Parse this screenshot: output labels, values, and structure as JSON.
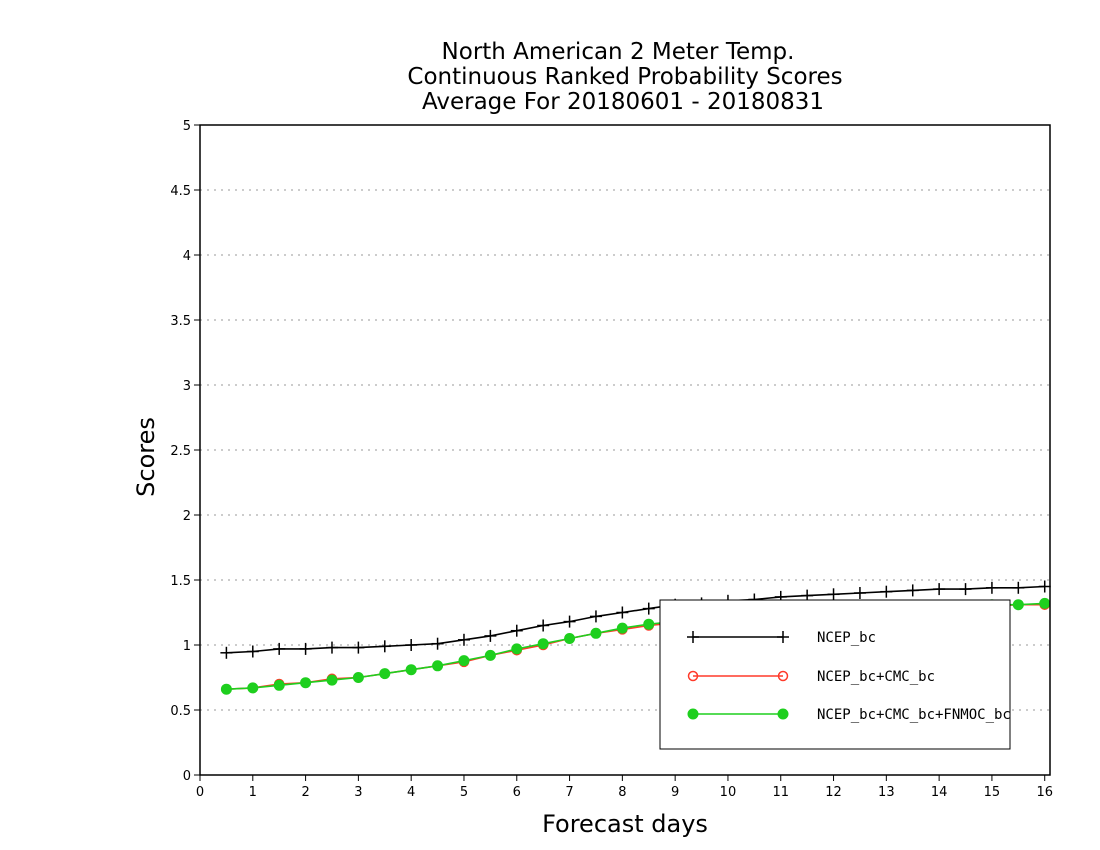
{
  "chart_data": {
    "type": "line",
    "title_lines": [
      "North American 2 Meter Temp.",
      "Continuous Ranked Probability Scores",
      "Average For 20180601 - 20180831"
    ],
    "xlabel": "Forecast days",
    "ylabel": "Scores",
    "xlim": [
      0,
      16.1
    ],
    "ylim": [
      0,
      5
    ],
    "x_ticks": [
      0,
      1,
      2,
      3,
      4,
      5,
      6,
      7,
      8,
      9,
      10,
      11,
      12,
      13,
      14,
      15,
      16
    ],
    "y_ticks": [
      "0",
      "0.5",
      "1",
      "1.5",
      "2",
      "2.5",
      "3",
      "3.5",
      "4",
      "4.5",
      "5"
    ],
    "grid": "horizontal dotted",
    "legend_position": "bottom-right",
    "x": [
      0.5,
      1,
      1.5,
      2,
      2.5,
      3,
      3.5,
      4,
      4.5,
      5,
      5.5,
      6,
      6.5,
      7,
      7.5,
      8,
      8.5,
      9,
      9.5,
      10,
      10.5,
      11,
      11.5,
      12,
      12.5,
      13,
      13.5,
      14,
      14.5,
      15,
      15.5,
      16
    ],
    "series": [
      {
        "name": "NCEP_bc",
        "color": "#000000",
        "marker": "plus",
        "values": [
          0.94,
          0.95,
          0.97,
          0.97,
          0.98,
          0.98,
          0.99,
          1.0,
          1.01,
          1.04,
          1.07,
          1.11,
          1.15,
          1.18,
          1.22,
          1.25,
          1.28,
          1.31,
          1.32,
          1.34,
          1.35,
          1.37,
          1.38,
          1.39,
          1.4,
          1.41,
          1.42,
          1.43,
          1.43,
          1.44,
          1.44,
          1.45
        ]
      },
      {
        "name": "NCEP_bc+CMC_bc",
        "color": "#ff3a2a",
        "marker": "open-circle",
        "values": [
          0.66,
          0.67,
          0.7,
          0.71,
          0.74,
          0.75,
          0.78,
          0.81,
          0.84,
          0.87,
          0.92,
          0.96,
          1.0,
          1.05,
          1.09,
          1.12,
          1.15,
          1.17,
          1.19,
          1.21,
          1.22,
          1.24,
          1.25,
          1.26,
          1.27,
          1.28,
          1.29,
          1.29,
          1.3,
          1.3,
          1.31,
          1.31
        ]
      },
      {
        "name": "NCEP_bc+CMC_bc+FNMOC_bc",
        "color": "#1ecf1e",
        "marker": "filled-circle",
        "values": [
          0.66,
          0.67,
          0.69,
          0.71,
          0.73,
          0.75,
          0.78,
          0.81,
          0.84,
          0.88,
          0.92,
          0.97,
          1.01,
          1.05,
          1.09,
          1.13,
          1.16,
          1.18,
          1.2,
          1.21,
          1.23,
          1.24,
          1.25,
          1.27,
          1.28,
          1.28,
          1.29,
          1.3,
          1.3,
          1.31,
          1.31,
          1.32
        ]
      }
    ]
  }
}
